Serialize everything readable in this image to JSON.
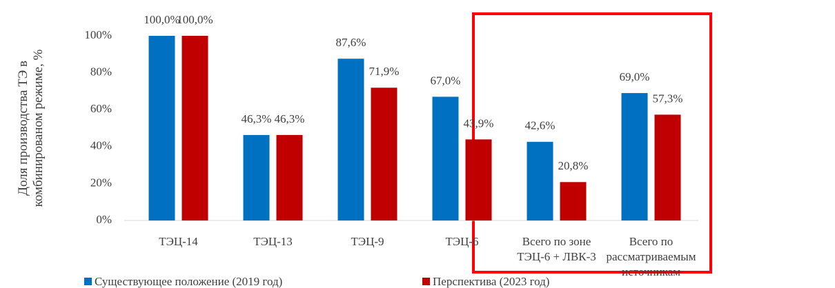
{
  "chart_data": {
    "type": "bar",
    "y_label": "Доля производства ТЭ в\nкомбинированом режиме, %",
    "categories": [
      "ТЭЦ-14",
      "ТЭЦ-13",
      "ТЭЦ-9",
      "ТЭЦ-6",
      "Всего по зоне\nТЭЦ-6 + ЛВК-3",
      "Всего по\nрассматриваемым\nисточникам"
    ],
    "series": [
      {
        "name": "Существующее положение (2019 год)",
        "color": "#0070c0",
        "values": [
          100,
          46.3,
          87.6,
          67,
          42.6,
          69
        ],
        "value_labels": [
          "100,0%",
          "46,3%",
          "87,6%",
          "67,0%",
          "42,6%",
          "69,0%"
        ]
      },
      {
        "name": "Перспектива (2023 год)",
        "color": "#c00000",
        "values": [
          100,
          46.3,
          71.9,
          43.9,
          20.8,
          57.3
        ],
        "value_labels": [
          "100,0%",
          "46,3%",
          "71,9%",
          "43,9%",
          "20,8%",
          "57,3%"
        ]
      }
    ],
    "ylim": [
      0,
      100
    ],
    "yticks": [
      {
        "value": 0,
        "label": "0%"
      },
      {
        "value": 20,
        "label": "20%"
      },
      {
        "value": 40,
        "label": "40%"
      },
      {
        "value": 60,
        "label": "60%"
      },
      {
        "value": 80,
        "label": "80%"
      },
      {
        "value": 100,
        "label": "100%"
      }
    ],
    "grid": false,
    "legend": "bottom"
  }
}
